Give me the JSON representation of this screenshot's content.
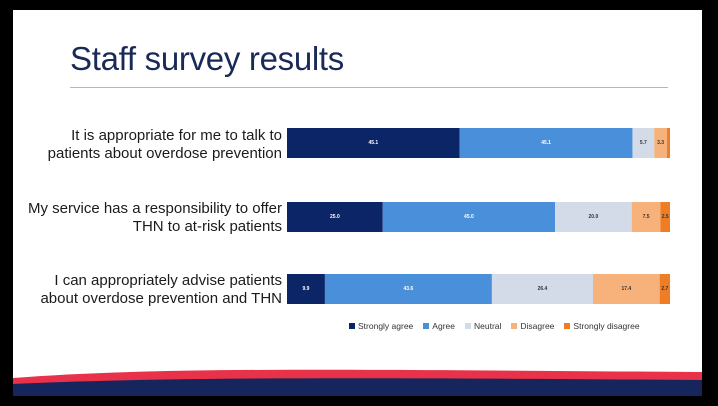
{
  "slide": {
    "title": "Staff survey results"
  },
  "colors": {
    "strongly_agree": "#0b2566",
    "agree": "#4a8fd9",
    "neutral": "#d3dbe8",
    "disagree": "#f6b27a",
    "strongly_disagree": "#ef7d26",
    "title": "#1a2a57"
  },
  "chart_data": {
    "type": "bar",
    "orientation": "horizontal",
    "stacked": true,
    "xlim": [
      0,
      100
    ],
    "grid": false,
    "legend_position": "bottom",
    "categories": [
      "It is appropriate for me to talk to patients about overdose prevention",
      "My service has a responsibility to offer THN to at-risk patients",
      "I can appropriately advise patients about overdose prevention and THN"
    ],
    "category_lines": [
      [
        "It is appropriate for me to talk to",
        "patients about overdose prevention"
      ],
      [
        "My service has a responsibility to offer",
        "THN to at-risk patients"
      ],
      [
        "I can appropriately advise patients",
        "about overdose prevention and THN"
      ]
    ],
    "series": [
      {
        "name": "Strongly agree",
        "values": [
          45.1,
          25.0,
          9.9
        ]
      },
      {
        "name": "Agree",
        "values": [
          45.1,
          45.0,
          43.6
        ]
      },
      {
        "name": "Neutral",
        "values": [
          5.7,
          20.0,
          26.4
        ]
      },
      {
        "name": "Disagree",
        "values": [
          3.3,
          7.5,
          17.4
        ]
      },
      {
        "name": "Strongly disagree",
        "values": [
          0.8,
          2.5,
          2.7
        ]
      }
    ],
    "data_labels": [
      [
        "45.1",
        "45.1",
        "5.7",
        "3.3",
        ""
      ],
      [
        "25.0",
        "45.0",
        "20.0",
        "7.5",
        "2.5"
      ],
      [
        "9.9",
        "43.6",
        "26.4",
        "17.4",
        "2.7"
      ]
    ]
  }
}
